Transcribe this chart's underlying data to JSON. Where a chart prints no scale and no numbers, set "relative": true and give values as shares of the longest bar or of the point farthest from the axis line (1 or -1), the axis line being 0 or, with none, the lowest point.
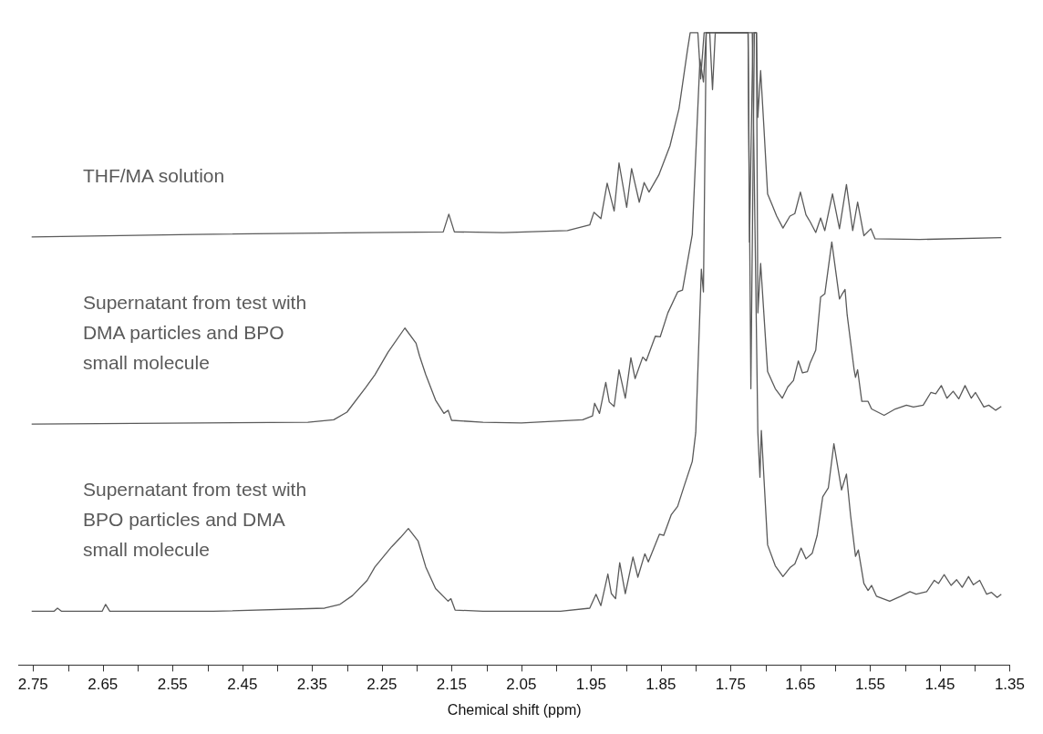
{
  "chart_data": {
    "type": "line",
    "relative": true,
    "xlabel": "Chemical shift (ppm)",
    "xlim": [
      2.77,
      1.35
    ],
    "xticks": [
      2.75,
      {
        "value": 2.7,
        "label": null
      },
      2.65,
      {
        "value": 2.6,
        "label": null
      },
      2.55,
      {
        "value": 2.5,
        "label": null
      },
      2.45,
      {
        "value": 2.4,
        "label": null
      },
      2.35,
      {
        "value": 2.3,
        "label": null
      },
      2.25,
      {
        "value": 2.2,
        "label": null
      },
      2.15,
      {
        "value": 2.1,
        "label": null
      },
      2.05,
      {
        "value": 2.0,
        "label": null
      },
      1.95,
      {
        "value": 1.9,
        "label": null
      },
      1.85,
      {
        "value": 1.8,
        "label": null
      },
      1.75,
      {
        "value": 1.7,
        "label": null
      },
      1.65,
      {
        "value": 1.6,
        "label": null
      },
      1.55,
      {
        "value": 1.5,
        "label": null
      },
      1.45,
      {
        "value": 1.4,
        "label": null
      },
      1.35
    ],
    "legend": false,
    "marker": "none",
    "line_style": "solid",
    "series": [
      {
        "name": "THF/MA solution",
        "color": "#5a5a5a",
        "x": [
          2.752,
          2.519,
          2.273,
          2.162,
          2.154,
          2.146,
          2.076,
          1.984,
          1.952,
          1.946,
          1.936,
          1.927,
          1.917,
          1.91,
          1.899,
          1.892,
          1.881,
          1.874,
          1.867,
          1.853,
          1.837,
          1.824,
          1.812,
          1.808,
          1.797,
          1.793,
          1.788,
          1.78,
          1.776,
          1.772,
          1.725,
          1.723,
          1.718,
          1.713,
          1.711,
          1.707,
          1.702,
          1.697,
          1.691,
          1.684,
          1.675,
          1.665,
          1.658,
          1.65,
          1.642,
          1.636,
          1.628,
          1.621,
          1.615,
          1.604,
          1.594,
          1.584,
          1.575,
          1.568,
          1.559,
          1.549,
          1.543,
          1.479,
          1.362
        ],
        "values": [
          0.677,
          0.681,
          0.684,
          0.685,
          0.713,
          0.685,
          0.684,
          0.687,
          0.696,
          0.716,
          0.706,
          0.762,
          0.718,
          0.794,
          0.724,
          0.785,
          0.732,
          0.763,
          0.748,
          0.775,
          0.821,
          0.88,
          0.972,
          1,
          1,
          0.927,
          1,
          1,
          0.91,
          1,
          1,
          0.669,
          1,
          1,
          0.866,
          0.94,
          0.844,
          0.745,
          0.729,
          0.71,
          0.691,
          0.71,
          0.714,
          0.748,
          0.712,
          0.701,
          0.684,
          0.707,
          0.687,
          0.745,
          0.69,
          0.76,
          0.687,
          0.732,
          0.679,
          0.69,
          0.674,
          0.673,
          0.676
        ]
      },
      {
        "name": "Supernatant from test with DMA particles and BPO small molecule",
        "color": "#5a5a5a",
        "x": [
          2.752,
          2.356,
          2.319,
          2.3,
          2.273,
          2.26,
          2.241,
          2.217,
          2.201,
          2.196,
          2.187,
          2.173,
          2.161,
          2.155,
          2.15,
          2.105,
          2.05,
          1.962,
          1.948,
          1.945,
          1.938,
          1.929,
          1.924,
          1.917,
          1.91,
          1.901,
          1.893,
          1.887,
          1.876,
          1.871,
          1.858,
          1.851,
          1.84,
          1.826,
          1.819,
          1.805,
          1.794,
          1.789,
          1.785,
          1.725,
          1.721,
          1.716,
          1.713,
          1.711,
          1.707,
          1.697,
          1.686,
          1.676,
          1.668,
          1.66,
          1.653,
          1.647,
          1.64,
          1.636,
          1.628,
          1.621,
          1.615,
          1.605,
          1.594,
          1.59,
          1.586,
          1.583,
          1.573,
          1.571,
          1.568,
          1.562,
          1.553,
          1.548,
          1.53,
          1.514,
          1.498,
          1.488,
          1.474,
          1.463,
          1.456,
          1.448,
          1.44,
          1.431,
          1.423,
          1.414,
          1.405,
          1.399,
          1.387,
          1.38,
          1.37,
          1.362
        ],
        "values": [
          0.381,
          0.384,
          0.388,
          0.4,
          0.439,
          0.459,
          0.495,
          0.533,
          0.509,
          0.489,
          0.459,
          0.419,
          0.398,
          0.403,
          0.387,
          0.384,
          0.383,
          0.388,
          0.394,
          0.414,
          0.398,
          0.447,
          0.416,
          0.409,
          0.467,
          0.422,
          0.486,
          0.453,
          0.487,
          0.481,
          0.52,
          0.519,
          0.557,
          0.59,
          0.593,
          0.681,
          0.958,
          0.922,
          1,
          1,
          0.437,
          1,
          1,
          0.557,
          0.635,
          0.464,
          0.437,
          0.422,
          0.44,
          0.45,
          0.481,
          0.462,
          0.464,
          0.478,
          0.498,
          0.582,
          0.587,
          0.669,
          0.579,
          0.587,
          0.594,
          0.554,
          0.467,
          0.455,
          0.467,
          0.417,
          0.417,
          0.405,
          0.395,
          0.405,
          0.411,
          0.408,
          0.411,
          0.431,
          0.429,
          0.442,
          0.422,
          0.433,
          0.421,
          0.442,
          0.422,
          0.431,
          0.408,
          0.411,
          0.403,
          0.409
        ]
      },
      {
        "name": "Supernatant from test with BPO particles and DMA small molecule",
        "color": "#5a5a5a",
        "x": [
          2.752,
          2.72,
          2.715,
          2.709,
          2.651,
          2.646,
          2.64,
          2.492,
          2.332,
          2.31,
          2.292,
          2.271,
          2.26,
          2.236,
          2.223,
          2.212,
          2.198,
          2.187,
          2.173,
          2.155,
          2.151,
          2.145,
          2.105,
          2.05,
          1.994,
          1.952,
          1.943,
          1.936,
          1.926,
          1.921,
          1.915,
          1.909,
          1.901,
          1.89,
          1.883,
          1.873,
          1.868,
          1.852,
          1.846,
          1.835,
          1.826,
          1.817,
          1.805,
          1.8,
          1.792,
          1.789,
          1.785,
          1.719,
          1.711,
          1.708,
          1.706,
          1.697,
          1.686,
          1.675,
          1.665,
          1.658,
          1.649,
          1.642,
          1.633,
          1.626,
          1.618,
          1.61,
          1.602,
          1.591,
          1.584,
          1.578,
          1.571,
          1.567,
          1.559,
          1.553,
          1.548,
          1.541,
          1.522,
          1.506,
          1.493,
          1.484,
          1.469,
          1.458,
          1.452,
          1.444,
          1.434,
          1.426,
          1.418,
          1.409,
          1.402,
          1.393,
          1.383,
          1.376,
          1.368,
          1.362
        ],
        "values": [
          0.085,
          0.085,
          0.09,
          0.085,
          0.085,
          0.096,
          0.085,
          0.085,
          0.09,
          0.096,
          0.11,
          0.134,
          0.155,
          0.187,
          0.202,
          0.216,
          0.196,
          0.155,
          0.121,
          0.101,
          0.105,
          0.087,
          0.085,
          0.085,
          0.085,
          0.09,
          0.112,
          0.094,
          0.144,
          0.113,
          0.105,
          0.162,
          0.113,
          0.171,
          0.139,
          0.176,
          0.163,
          0.207,
          0.205,
          0.238,
          0.251,
          0.282,
          0.322,
          0.368,
          0.626,
          0.59,
          1,
          1,
          0.368,
          0.297,
          0.371,
          0.19,
          0.157,
          0.14,
          0.154,
          0.16,
          0.185,
          0.168,
          0.177,
          0.205,
          0.266,
          0.28,
          0.35,
          0.277,
          0.302,
          0.236,
          0.172,
          0.182,
          0.129,
          0.118,
          0.126,
          0.109,
          0.101,
          0.109,
          0.116,
          0.112,
          0.116,
          0.134,
          0.129,
          0.143,
          0.126,
          0.135,
          0.123,
          0.14,
          0.127,
          0.134,
          0.112,
          0.115,
          0.107,
          0.112
        ]
      }
    ]
  }
}
